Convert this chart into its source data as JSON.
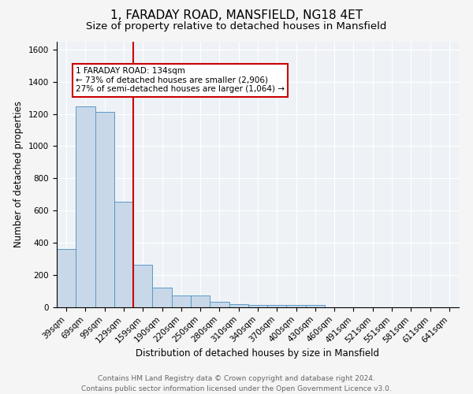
{
  "title": "1, FARADAY ROAD, MANSFIELD, NG18 4ET",
  "subtitle": "Size of property relative to detached houses in Mansfield",
  "xlabel": "Distribution of detached houses by size in Mansfield",
  "ylabel": "Number of detached properties",
  "footer_line1": "Contains HM Land Registry data © Crown copyright and database right 2024.",
  "footer_line2": "Contains public sector information licensed under the Open Government Licence v3.0.",
  "categories": [
    "39sqm",
    "69sqm",
    "99sqm",
    "129sqm",
    "159sqm",
    "190sqm",
    "220sqm",
    "250sqm",
    "280sqm",
    "310sqm",
    "340sqm",
    "370sqm",
    "400sqm",
    "430sqm",
    "460sqm",
    "491sqm",
    "521sqm",
    "551sqm",
    "581sqm",
    "611sqm",
    "641sqm"
  ],
  "values": [
    360,
    1245,
    1210,
    655,
    265,
    120,
    75,
    75,
    35,
    22,
    15,
    15,
    15,
    15,
    0,
    0,
    0,
    0,
    0,
    0,
    0
  ],
  "bar_color": "#c8d8e8",
  "bar_edge_color": "#5899c8",
  "red_line_color": "#cc0000",
  "annotation_text": "1 FARADAY ROAD: 134sqm\n← 73% of detached houses are smaller (2,906)\n27% of semi-detached houses are larger (1,064) →",
  "annotation_box_color": "#ffffff",
  "annotation_box_edge": "#cc0000",
  "ylim": [
    0,
    1650
  ],
  "yticks": [
    0,
    200,
    400,
    600,
    800,
    1000,
    1200,
    1400,
    1600
  ],
  "bg_color": "#eef2f6",
  "grid_color": "#ffffff",
  "title_fontsize": 11,
  "subtitle_fontsize": 9.5,
  "axis_label_fontsize": 8.5,
  "tick_fontsize": 7.5,
  "footer_fontsize": 6.5
}
